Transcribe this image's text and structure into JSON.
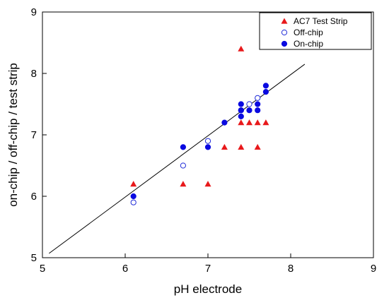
{
  "chart_data": {
    "type": "scatter",
    "xlabel": "pH electrode",
    "ylabel": "on-chip / off-chip / test strip",
    "xlim": [
      5,
      9
    ],
    "ylim": [
      5,
      9
    ],
    "x_ticks": [
      "5",
      "6",
      "7",
      "8",
      "9"
    ],
    "y_ticks": [
      "5",
      "6",
      "7",
      "8",
      "9"
    ],
    "grid": false,
    "legend_position": "top-right",
    "fit_line": {
      "x": [
        5.08,
        8.17
      ],
      "y": [
        5.07,
        8.15
      ],
      "color": "#000000"
    },
    "series": [
      {
        "name": "AC7 Test Strip",
        "marker": "triangle",
        "filled": true,
        "color": "#e8191b",
        "points": [
          [
            6.1,
            6.2
          ],
          [
            6.7,
            6.2
          ],
          [
            7.0,
            6.2
          ],
          [
            7.2,
            6.8
          ],
          [
            7.4,
            6.8
          ],
          [
            7.6,
            6.8
          ],
          [
            7.4,
            7.2
          ],
          [
            7.5,
            7.2
          ],
          [
            7.6,
            7.2
          ],
          [
            7.7,
            7.2
          ],
          [
            7.4,
            8.4
          ]
        ]
      },
      {
        "name": "Off-chip",
        "marker": "circle",
        "filled": false,
        "color": "#1f2bd8",
        "points": [
          [
            6.1,
            5.9
          ],
          [
            6.7,
            6.5
          ],
          [
            7.0,
            6.9
          ],
          [
            7.4,
            7.4
          ],
          [
            7.5,
            7.5
          ],
          [
            7.6,
            7.6
          ]
        ]
      },
      {
        "name": "On-chip",
        "marker": "circle",
        "filled": true,
        "color": "#0a0ae0",
        "points": [
          [
            6.1,
            6.0
          ],
          [
            6.7,
            6.8
          ],
          [
            7.0,
            6.8
          ],
          [
            7.2,
            7.2
          ],
          [
            7.4,
            7.3
          ],
          [
            7.4,
            7.4
          ],
          [
            7.4,
            7.5
          ],
          [
            7.5,
            7.4
          ],
          [
            7.6,
            7.4
          ],
          [
            7.6,
            7.5
          ],
          [
            7.7,
            7.7
          ],
          [
            7.7,
            7.8
          ]
        ]
      }
    ]
  }
}
